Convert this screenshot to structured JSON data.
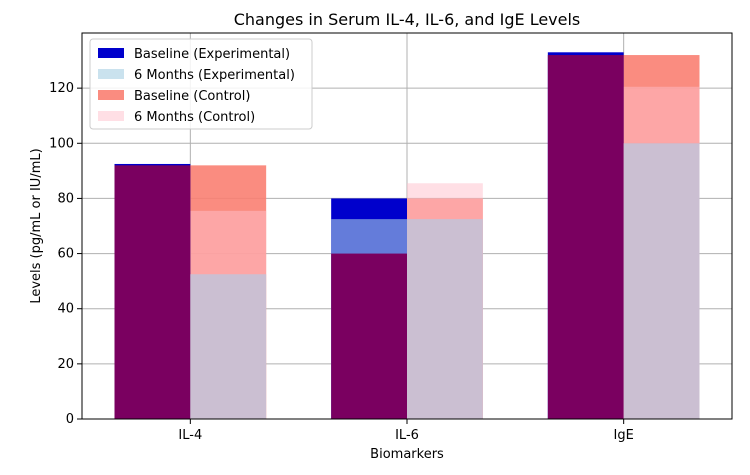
{
  "chart_data": {
    "type": "bar",
    "title": "Changes in Serum IL-4, IL-6, and IgE Levels",
    "xlabel": "Biomarkers",
    "ylabel": "Levels (pg/mL or IU/mL)",
    "categories": [
      "IL-4",
      "IL-6",
      "IgE"
    ],
    "ylim": [
      0,
      140
    ],
    "yticks": [
      0,
      20,
      40,
      60,
      80,
      100,
      120
    ],
    "grid": true,
    "legend_position": "top-left",
    "series": [
      {
        "name": "Baseline (Experimental)",
        "group": "experimental",
        "color": "#0000cc",
        "opacity": 1.0,
        "values": [
          92.5,
          80,
          133
        ]
      },
      {
        "name": "6 Months (Experimental)",
        "group": "experimental",
        "color": "#a6cee3",
        "opacity": 0.6,
        "values": [
          52.5,
          72.5,
          100
        ]
      },
      {
        "name": "Baseline (Control)",
        "group": "control",
        "color": "#fa8072",
        "opacity": 0.9,
        "values": [
          92,
          80,
          132
        ]
      },
      {
        "name": "6 Months (Control)",
        "group": "control",
        "color": "#ffc0cb",
        "opacity": 0.5,
        "values": [
          75.5,
          85.5,
          120.5
        ]
      }
    ],
    "overlap_color": "#7a0060"
  }
}
